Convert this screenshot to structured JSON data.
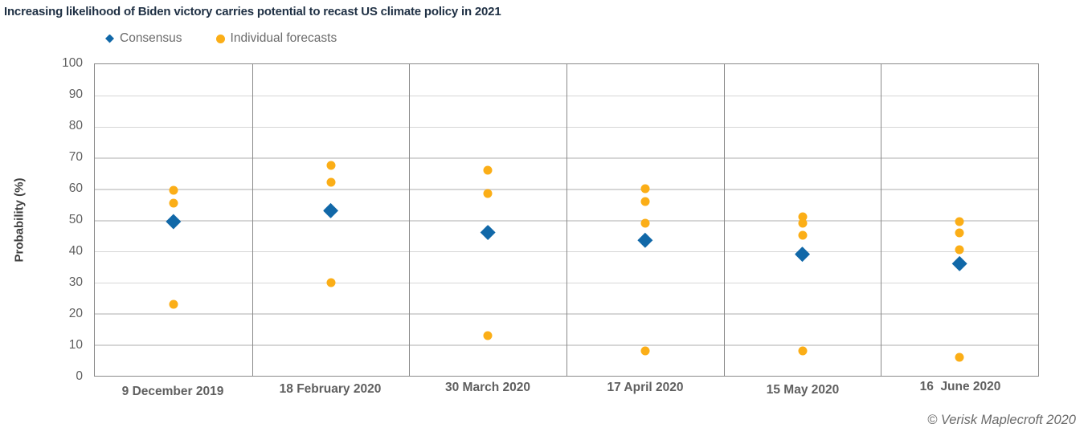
{
  "page": {
    "credit": "© Verisk Maplecroft 2020"
  },
  "chart_data": {
    "type": "scatter",
    "title": "Increasing likelihood of Biden victory carries potential to recast US climate policy in 2021",
    "xlabel": "",
    "ylabel": "Probability (%)",
    "ylim": [
      0,
      100
    ],
    "yticks": [
      0,
      10,
      20,
      30,
      40,
      50,
      60,
      70,
      80,
      90,
      100
    ],
    "grid": true,
    "legend_position": "top-left",
    "categories": [
      "9 December 2019",
      "18 February 2020",
      "30 March 2020",
      "17 April 2020",
      "15 May 2020",
      "16  June 2020"
    ],
    "series": [
      {
        "name": "Consensus",
        "marker": "diamond",
        "color": "#1168A8",
        "values": [
          49.5,
          53,
          46,
          43.5,
          39,
          36
        ]
      },
      {
        "name": "Individual forecasts",
        "marker": "circle",
        "color": "#FBAE17",
        "values_by_category": [
          [
            59.5,
            55.5,
            23
          ],
          [
            67.5,
            62,
            30
          ],
          [
            66,
            58.5,
            13
          ],
          [
            60,
            56,
            49,
            8
          ],
          [
            51,
            49,
            45,
            8
          ],
          [
            49.5,
            46,
            40.5,
            6
          ]
        ]
      }
    ]
  },
  "colors": {
    "consensus": "#1168A8",
    "forecast": "#FBAE17",
    "gridline": "#D6D6D6",
    "frame": "#8A8A8A",
    "title_text": "#1F3044",
    "axis_text": "#5F5F5F"
  }
}
